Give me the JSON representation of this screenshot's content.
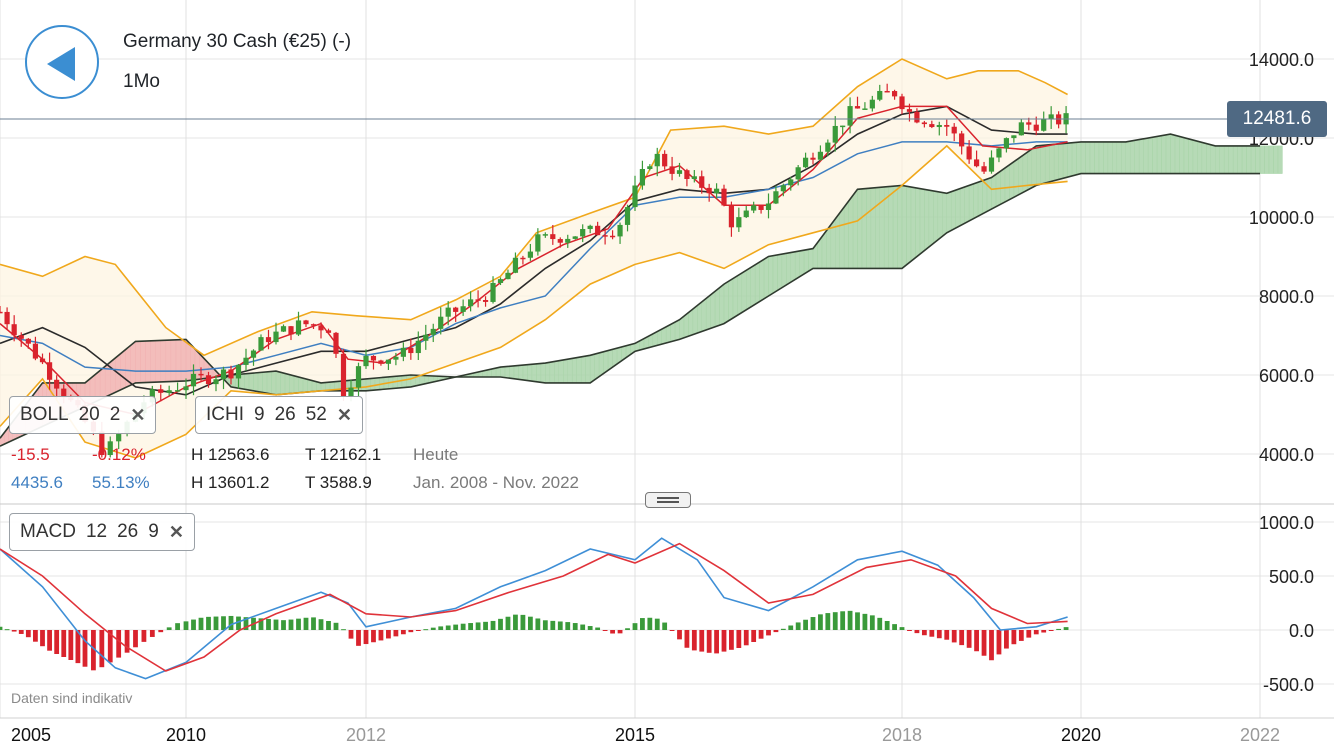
{
  "header": {
    "title": "Germany 30 Cash (€25) (-)",
    "period": "1Mo"
  },
  "last_price": "12481.6",
  "indicators": {
    "boll": {
      "name": "BOLL",
      "p1": "20",
      "p2": "2"
    },
    "ichi": {
      "name": "ICHI",
      "p1": "9",
      "p2": "26",
      "p3": "52"
    },
    "macd": {
      "name": "MACD",
      "p1": "12",
      "p2": "26",
      "p3": "9"
    }
  },
  "stats": {
    "change_abs": "-15.5",
    "change_pct": "-0.12%",
    "range_abs": "4435.6",
    "range_pct": "55.13%",
    "h_today": "H 12563.6",
    "t_today": "T 12162.1",
    "label_today": "Heute",
    "h_range": "H 13601.2",
    "t_range": "T 3588.9",
    "label_range": "Jan. 2008 - Nov. 2022"
  },
  "disclaimer": "Daten sind indikativ",
  "colors": {
    "up": "#3a9a3a",
    "down": "#d9232d",
    "boll": "#f0a81c",
    "tenkan": "#d9232d",
    "kijun": "#3f7fc1",
    "kumo_up": "#a9d4a9",
    "kumo_down": "#f1b3b3",
    "macd": "#3f8fd6",
    "signal": "#e0333a"
  },
  "chart_data": [
    {
      "type": "candlestick",
      "series_name": "Germany 30 Cash",
      "x_ticks": [
        "2005",
        "2010",
        "2012",
        "2015",
        "2018",
        "2020",
        "2022"
      ],
      "y_ticks": [
        "14000.0",
        "12000.0",
        "10000.0",
        "8000.0",
        "6000.0",
        "4000.0"
      ],
      "ylim": [
        3400,
        14600
      ],
      "close_path": [
        [
          2008.0,
          7600
        ],
        [
          2008.5,
          6300
        ],
        [
          2009.0,
          4800
        ],
        [
          2009.2,
          4000
        ],
        [
          2009.6,
          5400
        ],
        [
          2010.0,
          5800
        ],
        [
          2010.5,
          6100
        ],
        [
          2010.9,
          6950
        ],
        [
          2011.3,
          7300
        ],
        [
          2011.6,
          7200
        ],
        [
          2011.75,
          5600
        ],
        [
          2012.0,
          6400
        ],
        [
          2012.4,
          6500
        ],
        [
          2012.9,
          7500
        ],
        [
          2013.4,
          8100
        ],
        [
          2013.9,
          9400
        ],
        [
          2014.4,
          9600
        ],
        [
          2014.8,
          9700
        ],
        [
          2015.2,
          11600
        ],
        [
          2015.6,
          10900
        ],
        [
          2015.9,
          10700
        ],
        [
          2016.1,
          9800
        ],
        [
          2016.5,
          10400
        ],
        [
          2016.9,
          11400
        ],
        [
          2017.4,
          12600
        ],
        [
          2017.9,
          13200
        ],
        [
          2018.1,
          12600
        ],
        [
          2018.5,
          12300
        ],
        [
          2018.9,
          11100
        ],
        [
          2019.3,
          12300
        ],
        [
          2019.6,
          12400
        ],
        [
          2019.85,
          12480
        ]
      ],
      "bollinger_upper": [
        [
          2008.0,
          8800
        ],
        [
          2008.5,
          8500
        ],
        [
          2009.0,
          9000
        ],
        [
          2009.3,
          8800
        ],
        [
          2009.8,
          7200
        ],
        [
          2010.2,
          6500
        ],
        [
          2010.8,
          7100
        ],
        [
          2011.4,
          7600
        ],
        [
          2011.9,
          7500
        ],
        [
          2012.5,
          7400
        ],
        [
          2013.0,
          7900
        ],
        [
          2013.5,
          8500
        ],
        [
          2013.9,
          9600
        ],
        [
          2014.5,
          10100
        ],
        [
          2015.0,
          10500
        ],
        [
          2015.4,
          12200
        ],
        [
          2016.0,
          12300
        ],
        [
          2016.5,
          12100
        ],
        [
          2017.0,
          12300
        ],
        [
          2017.5,
          13300
        ],
        [
          2018.0,
          14000
        ],
        [
          2018.5,
          13500
        ],
        [
          2018.85,
          13700
        ],
        [
          2019.3,
          13700
        ],
        [
          2019.6,
          13400
        ],
        [
          2019.85,
          13100
        ]
      ],
      "bollinger_middle": [
        [
          2008.0,
          6800
        ],
        [
          2008.5,
          7200
        ],
        [
          2009.0,
          6700
        ],
        [
          2009.5,
          5700
        ],
        [
          2010.0,
          5500
        ],
        [
          2010.5,
          6000
        ],
        [
          2011.0,
          6300
        ],
        [
          2011.5,
          6600
        ],
        [
          2012.0,
          6600
        ],
        [
          2012.5,
          6900
        ],
        [
          2013.0,
          7200
        ],
        [
          2013.5,
          7800
        ],
        [
          2014.0,
          8700
        ],
        [
          2014.5,
          9400
        ],
        [
          2015.0,
          10400
        ],
        [
          2015.5,
          10700
        ],
        [
          2016.0,
          10600
        ],
        [
          2016.5,
          10700
        ],
        [
          2017.0,
          11300
        ],
        [
          2017.5,
          12100
        ],
        [
          2018.0,
          12600
        ],
        [
          2018.5,
          12800
        ],
        [
          2019.0,
          12200
        ],
        [
          2019.5,
          12100
        ],
        [
          2019.85,
          12100
        ]
      ],
      "bollinger_lower": [
        [
          2008.0,
          4700
        ],
        [
          2008.5,
          5900
        ],
        [
          2009.0,
          4300
        ],
        [
          2009.5,
          3900
        ],
        [
          2010.0,
          4500
        ],
        [
          2010.5,
          5600
        ],
        [
          2011.0,
          5500
        ],
        [
          2011.5,
          5600
        ],
        [
          2012.0,
          5700
        ],
        [
          2012.5,
          5900
        ],
        [
          2013.0,
          6300
        ],
        [
          2013.5,
          6700
        ],
        [
          2014.0,
          7400
        ],
        [
          2014.5,
          8300
        ],
        [
          2015.0,
          8800
        ],
        [
          2015.5,
          9100
        ],
        [
          2016.0,
          8700
        ],
        [
          2016.5,
          9300
        ],
        [
          2017.0,
          9600
        ],
        [
          2017.5,
          9900
        ],
        [
          2018.0,
          10800
        ],
        [
          2018.5,
          11800
        ],
        [
          2019.0,
          10700
        ],
        [
          2019.4,
          10800
        ],
        [
          2019.85,
          10900
        ]
      ],
      "tenkan_sen": [
        [
          2008.0,
          7300
        ],
        [
          2008.5,
          6400
        ],
        [
          2009.0,
          5300
        ],
        [
          2009.5,
          5000
        ],
        [
          2010.0,
          5700
        ],
        [
          2010.5,
          6100
        ],
        [
          2011.0,
          6900
        ],
        [
          2011.5,
          7300
        ],
        [
          2011.8,
          6400
        ],
        [
          2012.2,
          6300
        ],
        [
          2012.7,
          7000
        ],
        [
          2013.2,
          7800
        ],
        [
          2013.7,
          8700
        ],
        [
          2014.2,
          9300
        ],
        [
          2014.7,
          9700
        ],
        [
          2015.1,
          11000
        ],
        [
          2015.5,
          11300
        ],
        [
          2016.0,
          10300
        ],
        [
          2016.5,
          10300
        ],
        [
          2017.0,
          11200
        ],
        [
          2017.5,
          12500
        ],
        [
          2018.0,
          12800
        ],
        [
          2018.5,
          12800
        ],
        [
          2018.9,
          11800
        ],
        [
          2019.4,
          11700
        ],
        [
          2019.85,
          11900
        ]
      ],
      "kijun_sen": [
        [
          2008.0,
          7000
        ],
        [
          2008.5,
          6800
        ],
        [
          2009.0,
          6200
        ],
        [
          2009.5,
          6100
        ],
        [
          2010.0,
          6100
        ],
        [
          2010.5,
          6200
        ],
        [
          2011.0,
          6500
        ],
        [
          2011.5,
          6800
        ],
        [
          2012.0,
          6500
        ],
        [
          2012.5,
          6700
        ],
        [
          2013.0,
          7300
        ],
        [
          2013.5,
          7700
        ],
        [
          2014.0,
          8000
        ],
        [
          2014.5,
          9200
        ],
        [
          2015.0,
          10300
        ],
        [
          2015.5,
          10500
        ],
        [
          2016.0,
          10500
        ],
        [
          2016.5,
          10700
        ],
        [
          2017.0,
          11000
        ],
        [
          2017.5,
          11600
        ],
        [
          2018.0,
          11900
        ],
        [
          2018.5,
          11900
        ],
        [
          2019.0,
          11800
        ],
        [
          2019.5,
          11900
        ],
        [
          2019.85,
          11900
        ]
      ],
      "kumo_span_a": [
        [
          2008.0,
          4200
        ],
        [
          2008.5,
          4700
        ],
        [
          2009.0,
          5200
        ],
        [
          2009.5,
          5800
        ],
        [
          2010.0,
          5850
        ],
        [
          2010.5,
          6000
        ],
        [
          2011.0,
          6100
        ],
        [
          2011.5,
          5800
        ],
        [
          2012.0,
          5900
        ],
        [
          2012.5,
          6000
        ],
        [
          2013.0,
          5950
        ],
        [
          2013.5,
          6200
        ],
        [
          2014.0,
          6300
        ],
        [
          2014.5,
          6500
        ],
        [
          2015.0,
          6800
        ],
        [
          2015.5,
          7400
        ],
        [
          2016.0,
          8300
        ],
        [
          2016.5,
          9000
        ],
        [
          2017.0,
          9200
        ],
        [
          2017.5,
          10700
        ],
        [
          2018.0,
          10800
        ],
        [
          2018.5,
          10600
        ],
        [
          2019.0,
          11000
        ],
        [
          2019.5,
          11800
        ],
        [
          2020.0,
          11900
        ],
        [
          2020.5,
          11900
        ],
        [
          2021.0,
          12100
        ],
        [
          2021.5,
          11800
        ],
        [
          2022.0,
          11800
        ]
      ],
      "kumo_span_b": [
        [
          2008.0,
          4400
        ],
        [
          2008.5,
          5800
        ],
        [
          2009.0,
          5800
        ],
        [
          2009.5,
          6850
        ],
        [
          2010.0,
          6900
        ],
        [
          2010.5,
          5700
        ],
        [
          2011.0,
          5500
        ],
        [
          2011.5,
          5600
        ],
        [
          2012.0,
          5600
        ],
        [
          2012.5,
          5700
        ],
        [
          2013.0,
          5950
        ],
        [
          2013.5,
          5950
        ],
        [
          2014.0,
          5800
        ],
        [
          2014.5,
          5800
        ],
        [
          2015.0,
          6600
        ],
        [
          2015.5,
          6900
        ],
        [
          2016.0,
          7300
        ],
        [
          2016.5,
          8000
        ],
        [
          2017.0,
          8700
        ],
        [
          2017.5,
          8700
        ],
        [
          2018.0,
          8700
        ],
        [
          2018.5,
          9600
        ],
        [
          2019.0,
          10200
        ],
        [
          2019.5,
          10800
        ],
        [
          2020.0,
          11100
        ],
        [
          2020.5,
          11100
        ],
        [
          2021.0,
          11100
        ],
        [
          2021.5,
          11100
        ],
        [
          2022.0,
          11100
        ]
      ]
    },
    {
      "type": "line+bar",
      "series_name": "MACD",
      "y_ticks": [
        "1000.0",
        "500.0",
        "0.0",
        "-500.0"
      ],
      "ylim": [
        -650,
        1080
      ],
      "macd": [
        [
          2008.0,
          750
        ],
        [
          2008.5,
          400
        ],
        [
          2009.0,
          -100
        ],
        [
          2009.3,
          -350
        ],
        [
          2009.6,
          -450
        ],
        [
          2010.0,
          -300
        ],
        [
          2010.5,
          50
        ],
        [
          2011.0,
          200
        ],
        [
          2011.5,
          350
        ],
        [
          2011.8,
          250
        ],
        [
          2012.0,
          30
        ],
        [
          2012.5,
          120
        ],
        [
          2013.0,
          200
        ],
        [
          2013.5,
          400
        ],
        [
          2014.0,
          550
        ],
        [
          2014.5,
          750
        ],
        [
          2015.0,
          650
        ],
        [
          2015.3,
          850
        ],
        [
          2015.7,
          650
        ],
        [
          2016.0,
          300
        ],
        [
          2016.5,
          180
        ],
        [
          2017.0,
          400
        ],
        [
          2017.5,
          650
        ],
        [
          2018.0,
          730
        ],
        [
          2018.4,
          600
        ],
        [
          2018.8,
          300
        ],
        [
          2019.1,
          0
        ],
        [
          2019.5,
          30
        ],
        [
          2019.85,
          120
        ]
      ],
      "signal": [
        [
          2008.0,
          750
        ],
        [
          2008.5,
          500
        ],
        [
          2009.0,
          150
        ],
        [
          2009.4,
          -150
        ],
        [
          2009.8,
          -380
        ],
        [
          2010.2,
          -250
        ],
        [
          2010.6,
          0
        ],
        [
          2011.0,
          150
        ],
        [
          2011.6,
          330
        ],
        [
          2012.0,
          150
        ],
        [
          2012.5,
          120
        ],
        [
          2013.0,
          180
        ],
        [
          2013.6,
          350
        ],
        [
          2014.2,
          500
        ],
        [
          2014.7,
          700
        ],
        [
          2015.0,
          620
        ],
        [
          2015.5,
          800
        ],
        [
          2016.0,
          550
        ],
        [
          2016.5,
          250
        ],
        [
          2017.0,
          330
        ],
        [
          2017.6,
          580
        ],
        [
          2018.1,
          650
        ],
        [
          2018.6,
          500
        ],
        [
          2019.0,
          200
        ],
        [
          2019.4,
          60
        ],
        [
          2019.85,
          80
        ]
      ],
      "histogram": [
        [
          2008.0,
          30
        ],
        [
          2008.3,
          -50
        ],
        [
          2008.6,
          -200
        ],
        [
          2008.9,
          -300
        ],
        [
          2009.1,
          -380
        ],
        [
          2009.4,
          -220
        ],
        [
          2009.6,
          -100
        ],
        [
          2009.9,
          60
        ],
        [
          2010.2,
          120
        ],
        [
          2010.5,
          130
        ],
        [
          2010.8,
          110
        ],
        [
          2011.1,
          90
        ],
        [
          2011.4,
          120
        ],
        [
          2011.7,
          60
        ],
        [
          2011.9,
          -150
        ],
        [
          2012.2,
          -90
        ],
        [
          2012.5,
          -20
        ],
        [
          2012.8,
          30
        ],
        [
          2013.1,
          60
        ],
        [
          2013.4,
          80
        ],
        [
          2013.7,
          150
        ],
        [
          2014.0,
          90
        ],
        [
          2014.3,
          70
        ],
        [
          2014.6,
          20
        ],
        [
          2014.8,
          -50
        ],
        [
          2015.1,
          120
        ],
        [
          2015.3,
          100
        ],
        [
          2015.6,
          -180
        ],
        [
          2015.9,
          -220
        ],
        [
          2016.2,
          -160
        ],
        [
          2016.5,
          -50
        ],
        [
          2016.8,
          60
        ],
        [
          2017.1,
          150
        ],
        [
          2017.4,
          180
        ],
        [
          2017.7,
          130
        ],
        [
          2017.9,
          60
        ],
        [
          2018.2,
          -40
        ],
        [
          2018.5,
          -90
        ],
        [
          2018.8,
          -180
        ],
        [
          2019.0,
          -280
        ],
        [
          2019.2,
          -150
        ],
        [
          2019.5,
          -40
        ],
        [
          2019.85,
          30
        ]
      ]
    }
  ]
}
